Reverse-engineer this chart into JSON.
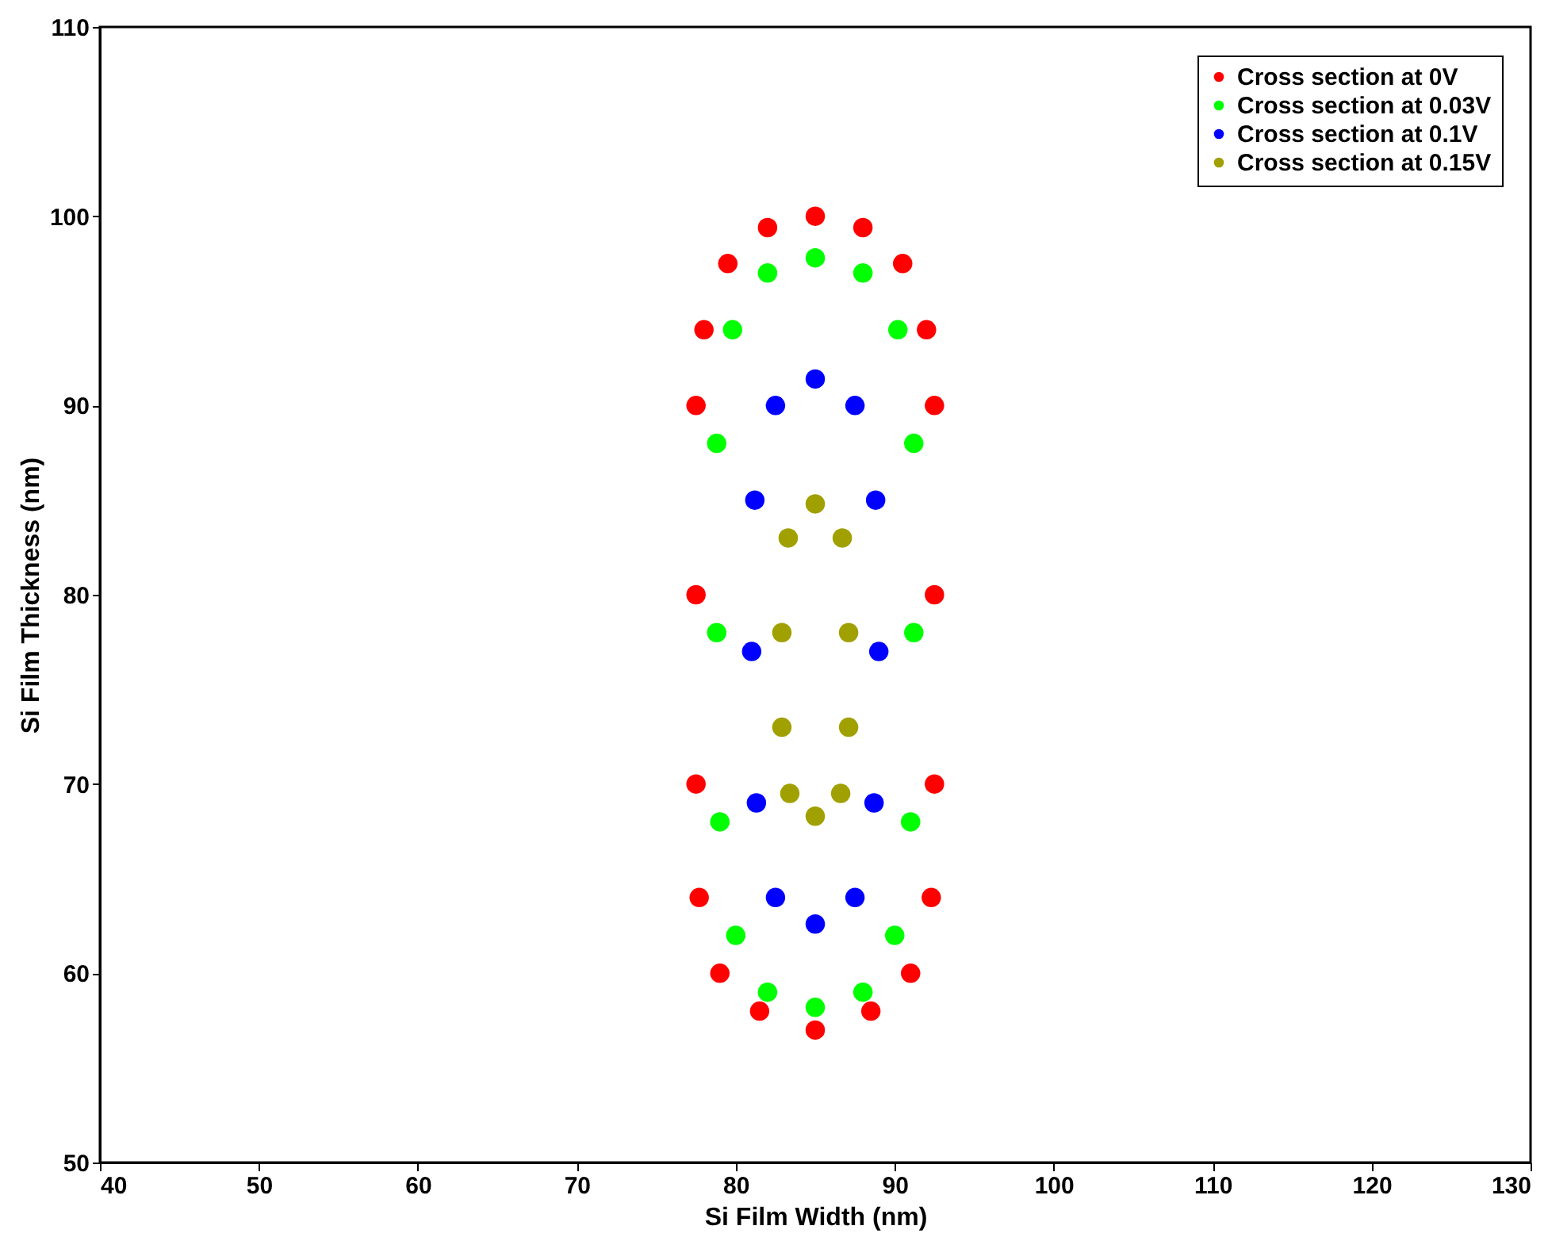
{
  "chart_data": {
    "type": "scatter",
    "xlabel": "Si Film Width (nm)",
    "ylabel": "Si Film Thickness (nm)",
    "xlim": [
      40,
      130
    ],
    "xticks": [
      40,
      50,
      60,
      70,
      80,
      90,
      100,
      110,
      120,
      130
    ],
    "ylim": [
      50,
      110
    ],
    "yticks": [
      50,
      60,
      70,
      80,
      90,
      100,
      110
    ],
    "grid": false,
    "legend": "top right",
    "marker": "circle",
    "series": [
      {
        "name": "Cross section at 0V",
        "color": "#ff0000",
        "x": [
          85,
          88,
          90.5,
          92,
          92.5,
          92.5,
          92.5,
          92.3,
          91,
          88.5,
          85,
          81.5,
          79,
          77.7,
          77.5,
          77.5,
          77.5,
          78,
          79.5,
          82
        ],
        "values": [
          100,
          99.4,
          97.5,
          94,
          90,
          80,
          70,
          64,
          60,
          58,
          57,
          58,
          60,
          64,
          70,
          80,
          90,
          94,
          97.5,
          99.4
        ]
      },
      {
        "name": "Cross section at 0.03V",
        "color": "#00ff00",
        "x": [
          85,
          88,
          90.2,
          91.2,
          91.2,
          91,
          90,
          88,
          85,
          82,
          80,
          79,
          78.8,
          78.8,
          79.8,
          82
        ],
        "values": [
          97.8,
          97,
          94,
          88,
          78,
          68,
          62,
          59,
          58.2,
          59,
          62,
          68,
          78,
          88,
          94,
          97
        ]
      },
      {
        "name": "Cross section at 0.1V",
        "color": "#0000ff",
        "x": [
          85,
          87.5,
          88.8,
          89,
          88.7,
          87.5,
          85,
          82.5,
          81.3,
          81,
          81.2,
          82.5
        ],
        "values": [
          91.4,
          90,
          85,
          77,
          69,
          64,
          62.6,
          64,
          69,
          77,
          85,
          90
        ]
      },
      {
        "name": "Cross section at 0.15V",
        "color": "#a0a000",
        "x": [
          85,
          86.7,
          87.1,
          87.1,
          86.6,
          85,
          83.4,
          82.9,
          82.9,
          83.3
        ],
        "values": [
          84.8,
          83,
          78,
          73,
          69.5,
          68.3,
          69.5,
          73,
          78,
          83
        ]
      }
    ]
  }
}
